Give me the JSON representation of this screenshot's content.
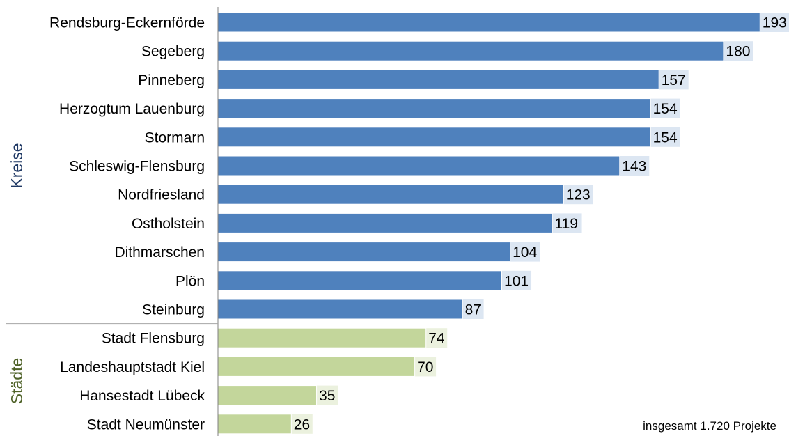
{
  "chart_data": {
    "type": "bar",
    "orientation": "horizontal",
    "groups": [
      {
        "label": "Kreise",
        "color": "#4f81bd",
        "label_color": "#1f3864",
        "value_bg": "#dce6f2",
        "categories": [
          "Rendsburg-Eckernförde",
          "Segeberg",
          "Pinneberg",
          "Herzogtum Lauenburg",
          "Stormarn",
          "Schleswig-Flensburg",
          "Nordfriesland",
          "Ostholstein",
          "Dithmarschen",
          "Plön",
          "Steinburg"
        ],
        "values": [
          193,
          180,
          157,
          154,
          154,
          143,
          123,
          119,
          104,
          101,
          87
        ]
      },
      {
        "label": "Städte",
        "color": "#c3d69b",
        "label_color": "#4f6228",
        "value_bg": "#ebf1de",
        "categories": [
          "Stadt Flensburg",
          "Landeshauptstadt Kiel",
          "Hansestadt Lübeck",
          "Stadt Neumünster"
        ],
        "values": [
          74,
          70,
          35,
          26
        ]
      }
    ],
    "xlim": [
      0,
      195
    ],
    "grid": false,
    "note": "insgesamt 1.720 Projekte"
  }
}
